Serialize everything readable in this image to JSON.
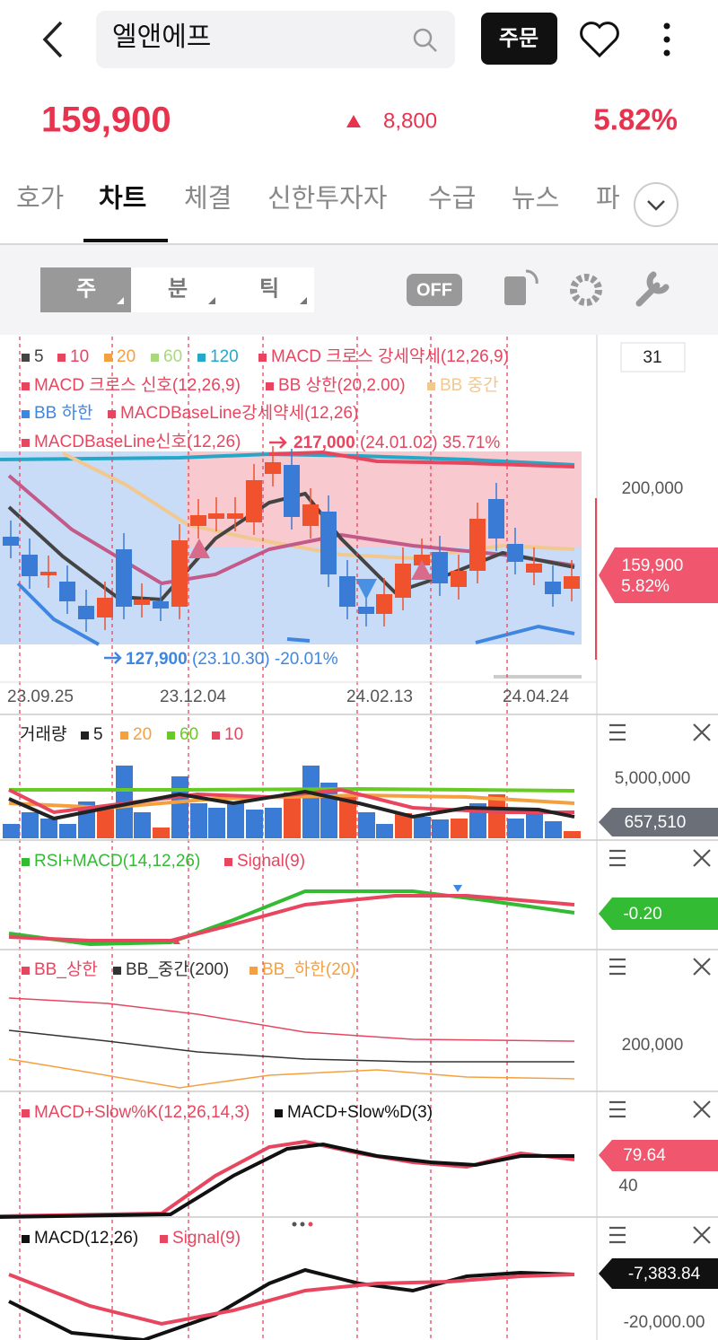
{
  "header": {
    "title": "엘앤에프",
    "order_button": "주문"
  },
  "price": {
    "current": "159,900",
    "change": "8,800",
    "change_rate": "5.82%"
  },
  "tabs": [
    "호가",
    "차트",
    "체결",
    "신한투자자",
    "수급",
    "뉴스",
    "파"
  ],
  "toolbar": {
    "periods": [
      "주",
      "분",
      "틱"
    ],
    "toggle": "OFF"
  },
  "main_chart": {
    "period_box": "31",
    "legend": [
      {
        "label": "5",
        "color": "#444444"
      },
      {
        "label": "10",
        "color": "#e8455f"
      },
      {
        "label": "20",
        "color": "#f5a040"
      },
      {
        "label": "60",
        "color": "#a8d880"
      },
      {
        "label": "120",
        "color": "#25a8c8"
      },
      {
        "label": "MACD 크로스 강세약세(12,26,9)",
        "color": "#e8455f"
      },
      {
        "label": "MACD 크로스 신호(12,26,9)",
        "color": "#e8455f"
      },
      {
        "label": "BB 상한(20,2.00)",
        "color": "#e8455f"
      },
      {
        "label": "BB 중간",
        "color": "#f0c890"
      },
      {
        "label": "BB 하한",
        "color": "#3f86e0"
      },
      {
        "label": "MACDBaseLine강세약세(12,26)",
        "color": "#e8455f"
      },
      {
        "label": "MACDBaseLine신호(12,26)",
        "color": "#e8455f"
      }
    ],
    "high_annotation": {
      "value": "217,000",
      "date": "(24.01.02)",
      "change": "35.71%"
    },
    "low_annotation": {
      "value": "127,900",
      "date": "(23.10.30)",
      "change": "-20.01%"
    },
    "axis_label": "200,000",
    "price_tag": {
      "price": "159,900",
      "rate": "5.82%"
    },
    "dates": [
      "23.09.25",
      "23.12.04",
      "24.02.13",
      "24.04.24"
    ]
  },
  "volume_panel": {
    "legend": [
      {
        "label": "거래량",
        "color": null
      },
      {
        "label": "5",
        "color": "#222222"
      },
      {
        "label": "20",
        "color": "#f5a040"
      },
      {
        "label": "60",
        "color": "#66cc22"
      },
      {
        "label": "10",
        "color": "#e8455f"
      }
    ],
    "axis_label": "5,000,000",
    "current": "657,510"
  },
  "rsi_panel": {
    "legend": [
      {
        "label": "RSI+MACD(14,12,26)",
        "color": "#33bb33"
      },
      {
        "label": "Signal(9)",
        "color": "#e8455f"
      }
    ],
    "current": "-0.20"
  },
  "bb_panel": {
    "legend": [
      {
        "label": "BB_상한",
        "color": "#e8455f"
      },
      {
        "label": "BB_중간(200)",
        "color": "#333333"
      },
      {
        "label": "BB_하한(20)",
        "color": "#f5a040"
      }
    ],
    "axis_label": "200,000"
  },
  "slow_panel": {
    "legend": [
      {
        "label": "MACD+Slow%K(12,26,14,3)",
        "color": "#e8455f"
      },
      {
        "label": "MACD+Slow%D(3)",
        "color": "#111111"
      }
    ],
    "current": "79.64",
    "axis_label": "40"
  },
  "macd_panel": {
    "legend": [
      {
        "label": "MACD(12,26)",
        "color": "#111111"
      },
      {
        "label": "Signal(9)",
        "color": "#e8455f"
      }
    ],
    "current": "-7,383.84",
    "axis_label": "-20,000.00"
  }
}
